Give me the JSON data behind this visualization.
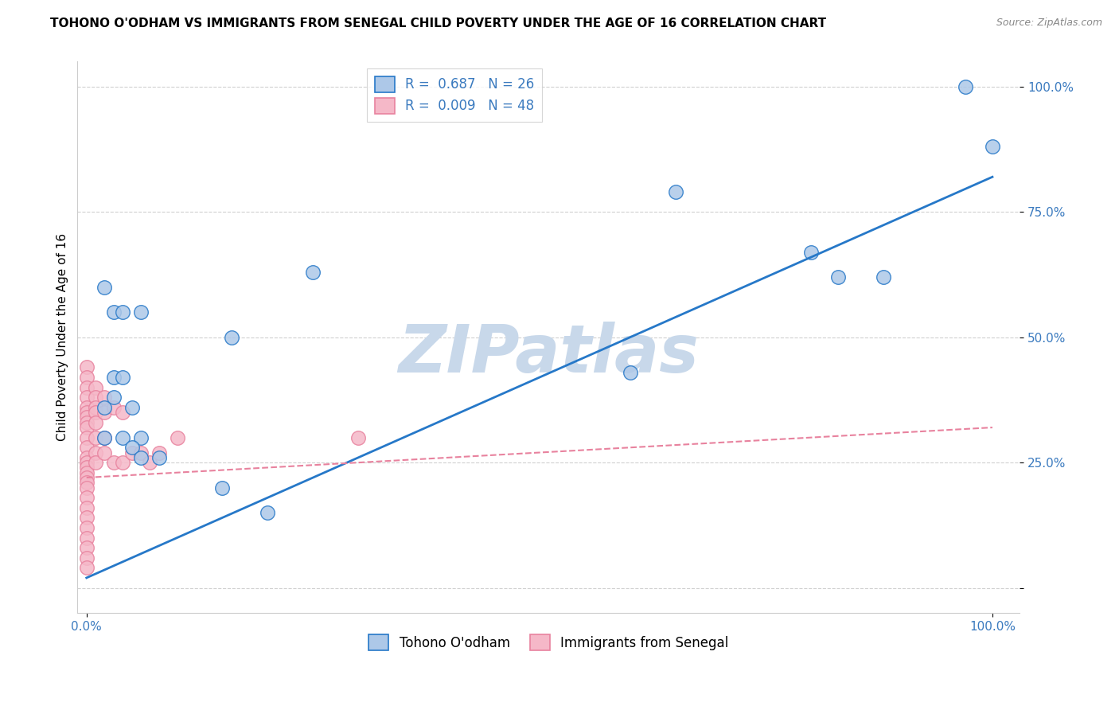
{
  "title": "TOHONO O'ODHAM VS IMMIGRANTS FROM SENEGAL CHILD POVERTY UNDER THE AGE OF 16 CORRELATION CHART",
  "source": "Source: ZipAtlas.com",
  "ylabel": "Child Poverty Under the Age of 16",
  "watermark": "ZIPatlas",
  "blue_label": "Tohono O'odham",
  "pink_label": "Immigrants from Senegal",
  "blue_R": "0.687",
  "blue_N": "26",
  "pink_R": "0.009",
  "pink_N": "48",
  "blue_color": "#adc8e8",
  "blue_line_color": "#2678c8",
  "pink_color": "#f5b8c8",
  "pink_line_color": "#e8829e",
  "blue_scatter": [
    [
      2,
      60
    ],
    [
      3,
      55
    ],
    [
      4,
      55
    ],
    [
      6,
      55
    ],
    [
      3,
      42
    ],
    [
      4,
      42
    ],
    [
      2,
      36
    ],
    [
      3,
      38
    ],
    [
      5,
      36
    ],
    [
      2,
      30
    ],
    [
      4,
      30
    ],
    [
      6,
      30
    ],
    [
      5,
      28
    ],
    [
      6,
      26
    ],
    [
      8,
      26
    ],
    [
      25,
      63
    ],
    [
      16,
      50
    ],
    [
      15,
      20
    ],
    [
      20,
      15
    ],
    [
      60,
      43
    ],
    [
      65,
      79
    ],
    [
      80,
      67
    ],
    [
      83,
      62
    ],
    [
      88,
      62
    ],
    [
      97,
      100
    ],
    [
      100,
      88
    ]
  ],
  "pink_scatter": [
    [
      0,
      44
    ],
    [
      0,
      42
    ],
    [
      0,
      40
    ],
    [
      0,
      38
    ],
    [
      0,
      36
    ],
    [
      0,
      35
    ],
    [
      0,
      34
    ],
    [
      0,
      33
    ],
    [
      0,
      32
    ],
    [
      0,
      30
    ],
    [
      0,
      28
    ],
    [
      0,
      26
    ],
    [
      0,
      25
    ],
    [
      0,
      24
    ],
    [
      0,
      23
    ],
    [
      0,
      22
    ],
    [
      0,
      21
    ],
    [
      0,
      20
    ],
    [
      0,
      18
    ],
    [
      0,
      16
    ],
    [
      0,
      14
    ],
    [
      0,
      12
    ],
    [
      0,
      10
    ],
    [
      0,
      8
    ],
    [
      0,
      6
    ],
    [
      0,
      4
    ],
    [
      1,
      40
    ],
    [
      1,
      38
    ],
    [
      1,
      36
    ],
    [
      1,
      35
    ],
    [
      1,
      33
    ],
    [
      1,
      30
    ],
    [
      1,
      27
    ],
    [
      1,
      25
    ],
    [
      2,
      38
    ],
    [
      2,
      35
    ],
    [
      2,
      30
    ],
    [
      2,
      27
    ],
    [
      3,
      36
    ],
    [
      3,
      25
    ],
    [
      4,
      35
    ],
    [
      4,
      25
    ],
    [
      5,
      27
    ],
    [
      6,
      27
    ],
    [
      7,
      25
    ],
    [
      8,
      27
    ],
    [
      10,
      30
    ],
    [
      30,
      30
    ]
  ],
  "blue_trendline": [
    [
      0,
      2
    ],
    [
      100,
      82
    ]
  ],
  "pink_trendline": [
    [
      0,
      22
    ],
    [
      100,
      32
    ]
  ],
  "ylim": [
    -5,
    105
  ],
  "xlim": [
    -1,
    103
  ],
  "yticks": [
    0,
    25,
    50,
    75,
    100
  ],
  "ytick_labels": [
    "",
    "25.0%",
    "50.0%",
    "75.0%",
    "100.0%"
  ],
  "xticks": [
    0,
    100
  ],
  "xtick_labels": [
    "0.0%",
    "100.0%"
  ],
  "grid_color": "#d0d0d0",
  "background_color": "#ffffff",
  "title_fontsize": 11,
  "axis_label_fontsize": 11,
  "tick_fontsize": 11,
  "legend_fontsize": 12,
  "watermark_color": "#c8d8ea",
  "watermark_fontsize": 60
}
